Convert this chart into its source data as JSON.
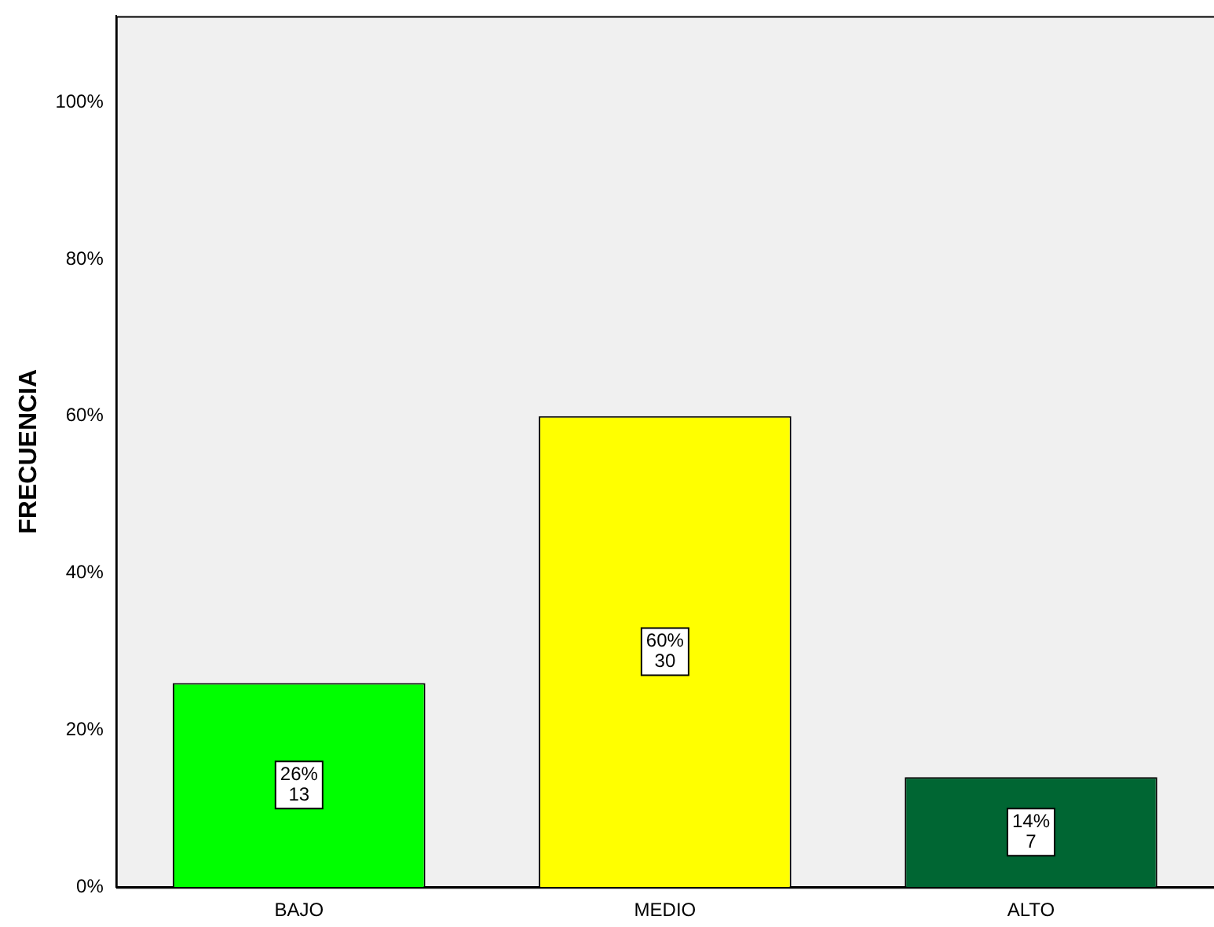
{
  "chart_data": {
    "type": "bar",
    "ylabel": "FRECUENCIA",
    "categories": [
      "BAJO",
      "MEDIO",
      "ALTO"
    ],
    "values": [
      26,
      60,
      14
    ],
    "colors": [
      "#00ff00",
      "#ffff00",
      "#006633"
    ],
    "value_labels": [
      "26%\n13",
      "60%\n30",
      "14%\n7"
    ],
    "ylim": [
      0,
      111
    ],
    "yticks": [
      {
        "value": 0,
        "label": "0%"
      },
      {
        "value": 20,
        "label": "20%"
      },
      {
        "value": 40,
        "label": "40%"
      },
      {
        "value": 60,
        "label": "60%"
      },
      {
        "value": 80,
        "label": "80%"
      },
      {
        "value": 100,
        "label": "100%"
      }
    ]
  }
}
